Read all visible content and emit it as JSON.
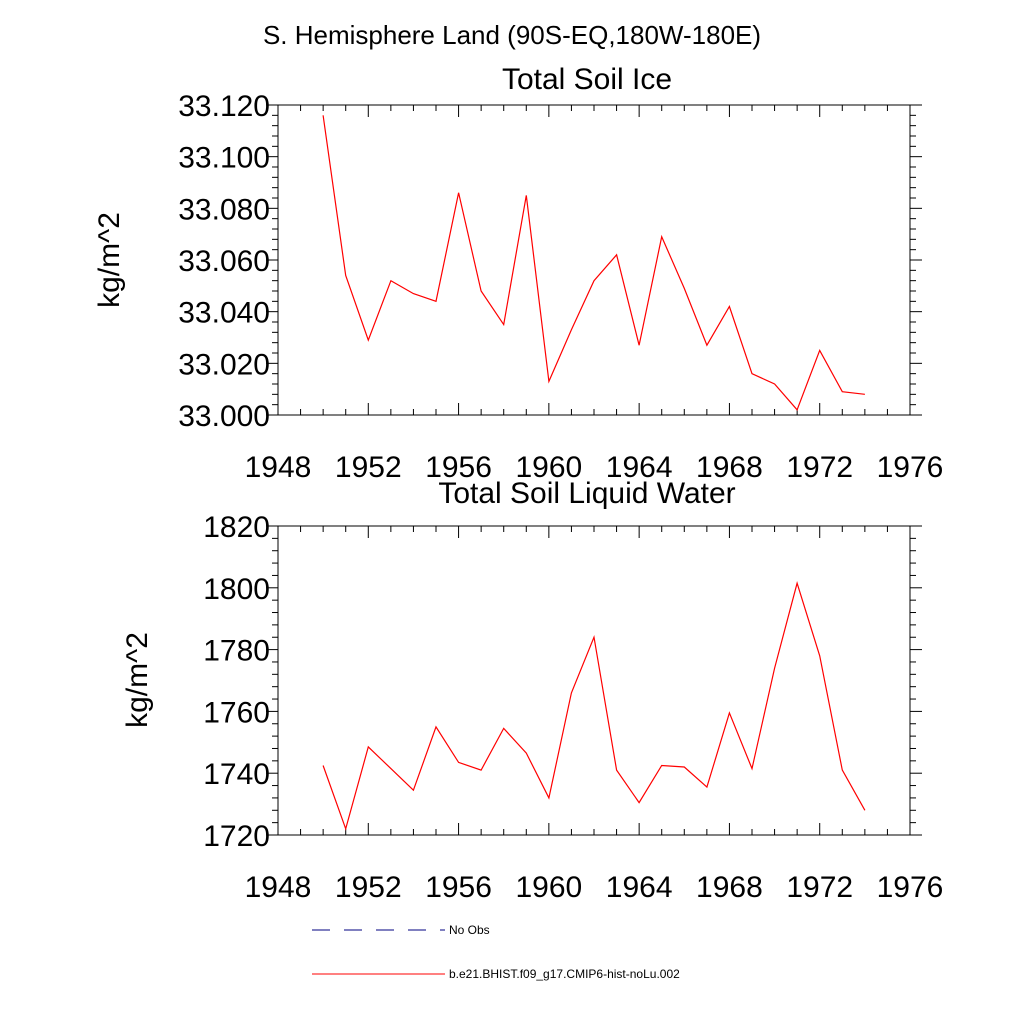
{
  "page_title": "S. Hemisphere Land (90S-EQ,180W-180E)",
  "legend": {
    "obs_label": "No Obs",
    "model_label": "b.e21.BHIST.f09_g17.CMIP6-hist-noLu.002",
    "obs_color": "#000080",
    "model_color": "#ff0000"
  },
  "chart_data": [
    {
      "type": "line",
      "title": "Total Soil Ice",
      "ylabel": "kg/m^2",
      "xlabel": "",
      "xlim": [
        1948,
        1976
      ],
      "ylim": [
        33.0,
        33.12
      ],
      "x_ticks": [
        "1948",
        "1952",
        "1956",
        "1960",
        "1964",
        "1968",
        "1972",
        "1976"
      ],
      "y_ticks": [
        "33.000",
        "33.020",
        "33.040",
        "33.060",
        "33.080",
        "33.100",
        "33.120"
      ],
      "series": [
        {
          "name": "b.e21.BHIST.f09_g17.CMIP6-hist-noLu.002",
          "color": "#ff0000",
          "x": [
            1950,
            1951,
            1952,
            1953,
            1954,
            1955,
            1956,
            1957,
            1958,
            1959,
            1960,
            1961,
            1962,
            1963,
            1964,
            1965,
            1966,
            1967,
            1968,
            1969,
            1970,
            1971,
            1972,
            1973,
            1974
          ],
          "values": [
            33.116,
            33.054,
            33.029,
            33.052,
            33.047,
            33.044,
            33.086,
            33.048,
            33.035,
            33.085,
            33.013,
            33.033,
            33.052,
            33.062,
            33.027,
            33.069,
            33.049,
            33.027,
            33.042,
            33.016,
            33.012,
            33.002,
            33.025,
            33.009,
            33.008
          ]
        }
      ]
    },
    {
      "type": "line",
      "title": "Total Soil Liquid Water",
      "ylabel": "kg/m^2",
      "xlabel": "",
      "xlim": [
        1948,
        1976
      ],
      "ylim": [
        1720,
        1820
      ],
      "x_ticks": [
        "1948",
        "1952",
        "1956",
        "1960",
        "1964",
        "1968",
        "1972",
        "1976"
      ],
      "y_ticks": [
        "1720",
        "1740",
        "1760",
        "1780",
        "1800",
        "1820"
      ],
      "series": [
        {
          "name": "b.e21.BHIST.f09_g17.CMIP6-hist-noLu.002",
          "color": "#ff0000",
          "x": [
            1950,
            1951,
            1952,
            1953,
            1954,
            1955,
            1956,
            1957,
            1958,
            1959,
            1960,
            1961,
            1962,
            1963,
            1964,
            1965,
            1966,
            1967,
            1968,
            1969,
            1970,
            1971,
            1972,
            1973,
            1974
          ],
          "values": [
            1742.5,
            1722,
            1748.5,
            1741.5,
            1734.5,
            1755,
            1743.5,
            1741,
            1754.5,
            1746.5,
            1732,
            1766,
            1784,
            1741,
            1730.5,
            1742.5,
            1742,
            1735.5,
            1759.5,
            1741.5,
            1774,
            1801.5,
            1778,
            1741,
            1728
          ]
        }
      ]
    }
  ]
}
